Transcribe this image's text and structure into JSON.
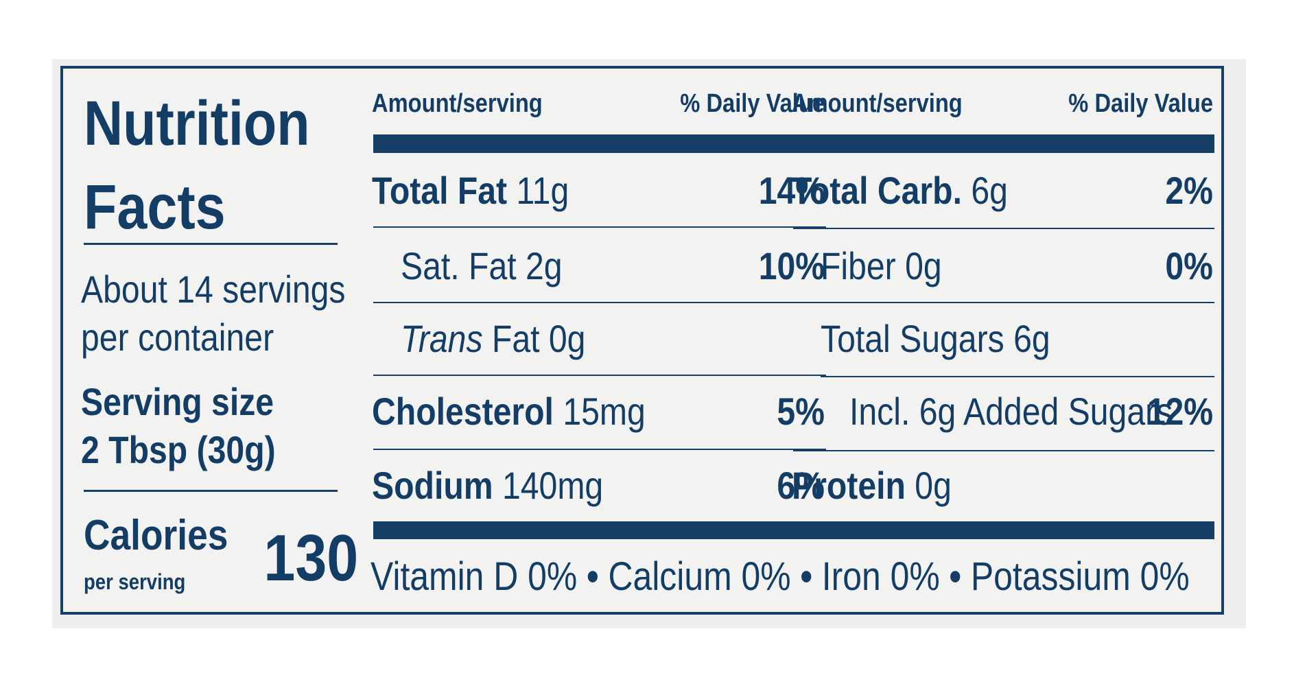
{
  "label": {
    "title_line1": "Nutrition",
    "title_line2": "Facts",
    "servings_line1": "About 14 servings",
    "servings_line2": "per container",
    "serving_size_label": "Serving size",
    "serving_size_value": "2 Tbsp (30g)",
    "calories_label": "Calories",
    "calories_sub": "per serving",
    "calories_value": "130"
  },
  "columns": {
    "left": {
      "amount_header": "Amount/serving",
      "dv_header": "% Daily Value",
      "rows": [
        {
          "name": "Total Fat",
          "amount": "11g",
          "dv": "14%"
        },
        {
          "name": "Sat. Fat",
          "amount": "2g",
          "dv": "10%"
        },
        {
          "name": "Trans",
          "amount": "Fat 0g",
          "dv": ""
        },
        {
          "name": "Cholesterol",
          "amount": "15mg",
          "dv": "5%"
        },
        {
          "name": "Sodium",
          "amount": "140mg",
          "dv": "6%"
        }
      ]
    },
    "right": {
      "amount_header": "Amount/serving",
      "dv_header": "% Daily Value",
      "rows": [
        {
          "name": "Total Carb.",
          "amount": "6g",
          "dv": "2%"
        },
        {
          "name": "Fiber",
          "amount": "0g",
          "dv": "0%"
        },
        {
          "name": "Total Sugars",
          "amount": "6g",
          "dv": ""
        },
        {
          "name": "Incl. 6g Added Sugars",
          "amount": "",
          "dv": "12%"
        },
        {
          "name": "Protein",
          "amount": "0g",
          "dv": ""
        }
      ]
    }
  },
  "footer": {
    "vitamin_d": "Vitamin D 0%",
    "calcium": "Calcium 0%",
    "iron": "Iron 0%",
    "potassium": "Potassium 0%",
    "separator": "•"
  },
  "colors": {
    "ink": "#163e67",
    "panel": "#f2f2f0"
  }
}
